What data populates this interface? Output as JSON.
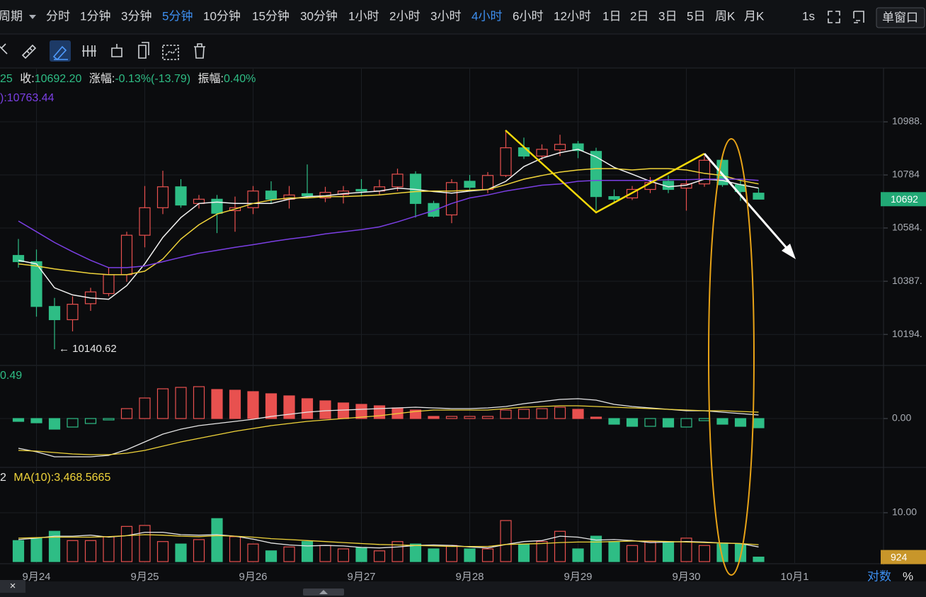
{
  "toolbar": {
    "period": "周期",
    "intervals": [
      "分时",
      "1分钟",
      "3分钟",
      "5分钟",
      "10分钟",
      "15分钟",
      "30分钟",
      "1小时",
      "2小时",
      "3小时",
      "4小时",
      "6小时",
      "12小时",
      "1日",
      "2日",
      "3日",
      "5日",
      "周K",
      "月K"
    ],
    "speed": "1s",
    "window": "单窗口"
  },
  "footer": {
    "log": "对数",
    "percent": "%",
    "close_tab": "×"
  },
  "chart_data": [
    {
      "type": "candlestick",
      "info": [
        {
          "text": "25"
        },
        {
          "label": "收:",
          "text": "10692.20"
        },
        {
          "label": "涨幅:",
          "text": "-0.13%(-13.79)"
        },
        {
          "label": "振幅:",
          "text": "0.40%"
        }
      ],
      "ma_label": "):10763.44",
      "categories": [
        null,
        "9月24",
        null,
        null,
        null,
        null,
        null,
        "9月25",
        null,
        null,
        null,
        null,
        null,
        "9月26",
        null,
        null,
        null,
        null,
        null,
        "9月27",
        null,
        null,
        null,
        null,
        null,
        "9月28",
        null,
        null,
        null,
        null,
        null,
        "9月29",
        null,
        null,
        null,
        null,
        null,
        "9月30",
        null,
        null,
        null,
        null,
        null,
        "10月1"
      ],
      "open": [
        10482,
        10459,
        10295,
        10247,
        10305,
        10342,
        10411,
        10557,
        10660,
        10739,
        10676,
        10692,
        10649,
        10660,
        10723,
        10692,
        10713,
        10697,
        10710,
        10729,
        10723,
        10739,
        10787,
        10676,
        10633,
        10760,
        10729,
        10782,
        10888,
        10856,
        10880,
        10903,
        10874,
        10702,
        10697,
        10729,
        10760,
        10734,
        10750,
        10840,
        10747,
        10715,
        null,
        null
      ],
      "close": [
        10459,
        10295,
        10247,
        10303,
        10348,
        10411,
        10557,
        10660,
        10739,
        10670,
        10692,
        10639,
        10660,
        10723,
        10692,
        10708,
        10705,
        10718,
        10723,
        10723,
        10739,
        10787,
        10676,
        10628,
        10755,
        10737,
        10782,
        10888,
        10856,
        10882,
        10901,
        10877,
        10702,
        10692,
        10729,
        10755,
        10729,
        10750,
        10840,
        10747,
        10721,
        10692.2,
        null,
        null
      ],
      "high": [
        10543,
        10504,
        10326,
        10332,
        10363,
        10437,
        10570,
        10742,
        10800,
        10768,
        10708,
        10708,
        10702,
        10742,
        10760,
        10742,
        10824,
        10739,
        10742,
        10768,
        10766,
        10808,
        10798,
        10686,
        10768,
        10784,
        10795,
        10956,
        10927,
        10901,
        10938,
        10914,
        10888,
        10729,
        10742,
        10776,
        10782,
        10768,
        10856,
        10850,
        10768,
        10734,
        null,
        null
      ],
      "low": [
        10437,
        10258,
        10140.62,
        10205,
        10279,
        10332,
        10385,
        10512,
        10636,
        10660,
        10657,
        10565,
        10570,
        10636,
        10676,
        10657,
        10697,
        10681,
        10676,
        10702,
        10708,
        10723,
        10623,
        10623,
        10602,
        10723,
        10715,
        10776,
        10845,
        10840,
        10856,
        10848,
        10649,
        10676,
        10689,
        10715,
        10715,
        10649,
        10739,
        10739,
        10686,
        10692.2,
        null,
        null
      ],
      "up_color": "#e8514f",
      "down_color": "#2ebd85",
      "series": [
        {
          "color": "#f2f2f2",
          "values": [
            10464,
            10451,
            10363,
            10337,
            10326,
            10321,
            10371,
            10451,
            10549,
            10623,
            10676,
            10681,
            10676,
            10676,
            10676,
            10692,
            10702,
            10705,
            10713,
            10718,
            10723,
            10734,
            10729,
            10721,
            10715,
            10723,
            10729,
            10760,
            10816,
            10848,
            10869,
            10882,
            10853,
            10813,
            10787,
            10760,
            10739,
            10745,
            10768,
            10763,
            10747,
            10734,
            null,
            null
          ]
        },
        {
          "color": "#f0d43a",
          "values": [
            10451,
            10443,
            10432,
            10424,
            10416,
            10411,
            10411,
            10424,
            10469,
            10543,
            10596,
            10636,
            10655,
            10676,
            10689,
            10697,
            10697,
            10702,
            10702,
            10705,
            10708,
            10715,
            10721,
            10723,
            10723,
            10726,
            10729,
            10747,
            10768,
            10782,
            10795,
            10803,
            10808,
            10808,
            10803,
            10808,
            10808,
            10803,
            10790,
            10782,
            10763,
            10750,
            null,
            null
          ]
        },
        {
          "color": "#7b3fe4",
          "values": [
            10610,
            10570,
            10530,
            10496,
            10464,
            10437,
            10437,
            10443,
            10459,
            10475,
            10490,
            10501,
            10512,
            10522,
            10533,
            10543,
            10551,
            10562,
            10570,
            10578,
            10588,
            10607,
            10628,
            10649,
            10676,
            10697,
            10708,
            10723,
            10734,
            10745,
            10750,
            10760,
            10763,
            10763,
            10763,
            10763,
            10766,
            10766,
            10768,
            10768,
            10768,
            10763.44,
            null,
            null
          ]
        }
      ],
      "log_scale": true,
      "grid": true,
      "ylim": [
        10083,
        11196
      ],
      "yticks": [
        {
          "value": 10988,
          "label": "10988."
        },
        10784,
        {
          "value": 10584,
          "label": "10584."
        },
        {
          "value": 10387,
          "label": "10387."
        },
        {
          "value": 10194,
          "label": "10194."
        }
      ],
      "min_label": {
        "value": 10140.62,
        "label": "← 10140.62"
      },
      "last_label": {
        "value": 10692.2,
        "label": "10692"
      }
    },
    {
      "type": "macd",
      "header": "0.49",
      "values": [
        -4,
        -6,
        -15,
        -12,
        -7,
        -2,
        14,
        29,
        42,
        44,
        45,
        41,
        40,
        38,
        35,
        32,
        28,
        25,
        22,
        20,
        18,
        15,
        12,
        3,
        3,
        3,
        3,
        12,
        13,
        14,
        16,
        13,
        2,
        -8,
        -11,
        -11,
        -12,
        -12,
        -3,
        -8,
        -11,
        -13,
        null,
        null
      ],
      "series": [
        {
          "color": "#e6e6e6",
          "values": [
            -42,
            -47,
            -54,
            -54,
            -54,
            -52,
            -44,
            -33,
            -22,
            -15,
            -10,
            -7,
            -4,
            -1,
            3,
            6,
            9,
            11,
            12,
            13,
            14,
            15,
            16,
            15,
            14,
            14,
            15,
            17,
            21,
            24,
            27,
            28,
            26,
            20,
            17,
            15,
            13,
            11,
            11,
            9,
            7,
            5,
            null,
            null
          ]
        },
        {
          "color": "#f0d43a",
          "values": [
            -45,
            -46,
            -48,
            -50,
            -51,
            -51,
            -49,
            -45,
            -39,
            -33,
            -28,
            -23,
            -18,
            -14,
            -10,
            -7,
            -4,
            -2,
            0,
            2,
            4,
            7,
            10,
            12,
            12,
            12,
            12,
            14,
            16,
            17,
            18,
            18,
            17,
            16,
            15,
            14,
            13,
            12,
            11,
            11,
            10,
            9,
            null,
            null
          ]
        }
      ],
      "ylim": [
        -69,
        74
      ],
      "yticks": [
        {
          "value": 0,
          "label": "0.00"
        }
      ]
    },
    {
      "type": "volume",
      "header": [
        "2",
        "MA(10):3,468.5665"
      ],
      "values": [
        4300,
        4800,
        6200,
        4300,
        4300,
        5100,
        7200,
        7400,
        4100,
        3600,
        4500,
        8800,
        5100,
        3600,
        2200,
        3000,
        4100,
        3300,
        2600,
        2900,
        2200,
        4100,
        3600,
        2600,
        3300,
        2600,
        2600,
        8400,
        3600,
        4100,
        6200,
        2600,
        5200,
        4100,
        3300,
        4100,
        4100,
        4800,
        3300,
        3600,
        3600,
        924,
        null,
        null
      ],
      "series": [
        {
          "color": "#e6e6e6",
          "values": [
            4500,
            4800,
            5200,
            5200,
            5400,
            5000,
            5300,
            6000,
            6000,
            5500,
            5400,
            5500,
            5200,
            4600,
            3800,
            3400,
            3200,
            3300,
            3200,
            2900,
            2800,
            3000,
            3300,
            3400,
            3300,
            3000,
            2800,
            3500,
            4100,
            4300,
            5200,
            5000,
            4400,
            4500,
            4300,
            3900,
            4000,
            4100,
            4000,
            3800,
            3700,
            3000,
            null,
            null
          ]
        },
        {
          "color": "#f0d43a",
          "values": [
            4800,
            4900,
            5000,
            5000,
            5000,
            5100,
            5300,
            5500,
            5400,
            5200,
            5100,
            5300,
            5200,
            5000,
            4700,
            4500,
            4300,
            4100,
            3900,
            3700,
            3500,
            3400,
            3300,
            3200,
            3100,
            3100,
            3100,
            3500,
            3600,
            3700,
            3900,
            4000,
            4000,
            4100,
            4200,
            4200,
            4100,
            4000,
            3900,
            3800,
            3700,
            3468.5665,
            null,
            null
          ]
        }
      ],
      "ylim": [
        0,
        19130
      ],
      "yticks": [
        {
          "value": 10000,
          "label": "10.00"
        }
      ],
      "last_label": {
        "value": 924,
        "label": "924"
      }
    }
  ]
}
